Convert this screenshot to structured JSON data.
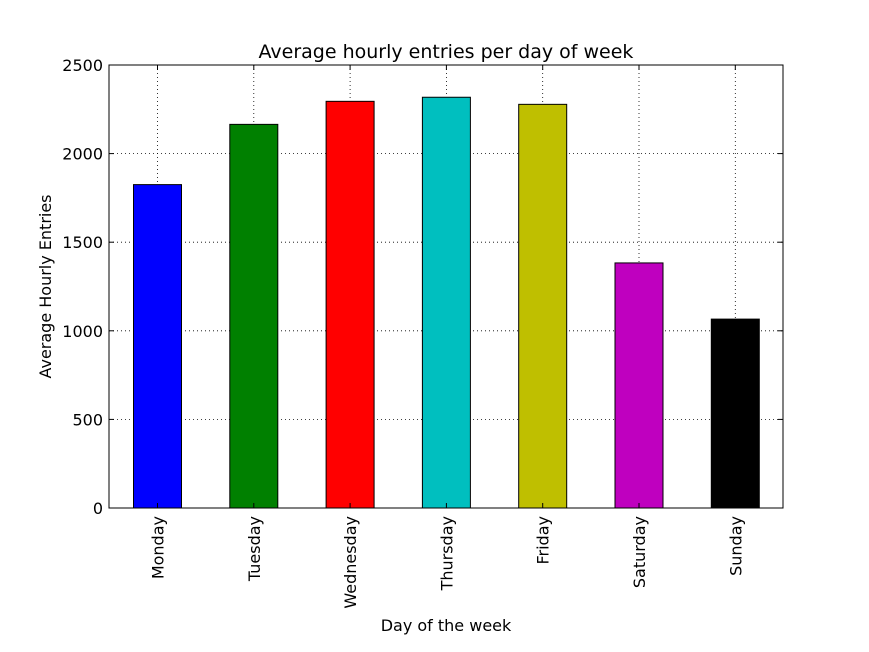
{
  "chart_data": {
    "type": "bar",
    "title": "Average hourly entries per day of week",
    "xlabel": "Day of the week",
    "ylabel": "Average Hourly Entries",
    "categories": [
      "Monday",
      "Tuesday",
      "Wednesday",
      "Thursday",
      "Friday",
      "Saturday",
      "Sunday"
    ],
    "values": [
      1825,
      2165,
      2295,
      2318,
      2278,
      1383,
      1066
    ],
    "colors": [
      "#0000ff",
      "#008000",
      "#ff0000",
      "#00bfbf",
      "#bfbf00",
      "#bf00bf",
      "#000000"
    ],
    "ylim": [
      0,
      2500
    ],
    "yticks": [
      "0",
      "500",
      "1000",
      "1500",
      "2000",
      "2500"
    ],
    "grid": true
  }
}
